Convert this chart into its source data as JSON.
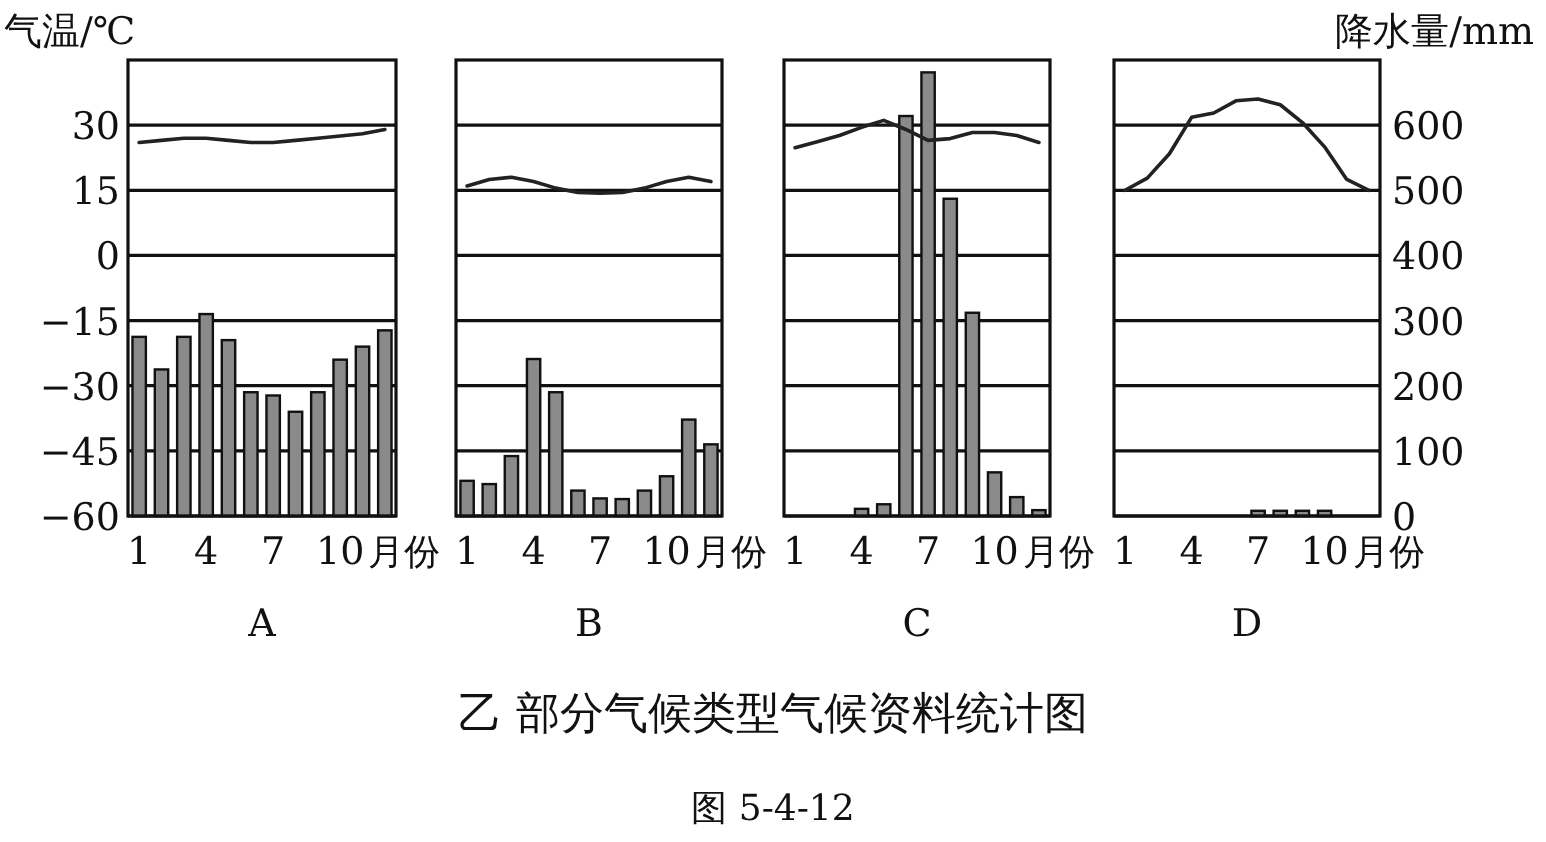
{
  "chart_data": [
    {
      "type": "bar",
      "title": "A",
      "ylabel": "气温/℃",
      "xlabel": "月份",
      "categories": [
        "1",
        null,
        null,
        "4",
        null,
        null,
        "7",
        null,
        null,
        "10",
        null,
        null
      ],
      "ylim": [
        -60,
        45
      ],
      "yticks": [
        -60,
        -45,
        -30,
        -15,
        0,
        15,
        30
      ],
      "y2lim": [
        0,
        700
      ],
      "grid": "y",
      "tick_labels": "xy",
      "series": [
        {
          "axis": "y2",
          "color": "#8a8a8a",
          "values": [
            275,
            225,
            275,
            310,
            270,
            190,
            185,
            160,
            190,
            240,
            260,
            285
          ]
        },
        {
          "type": "line",
          "color": "#222222",
          "values": [
            26,
            26.5,
            27,
            27,
            26.5,
            26,
            26,
            26.5,
            27,
            27.5,
            28,
            29
          ]
        }
      ],
      "annotations": [
        "乙 部分气候类型气候资料统计图",
        "图 5-4-12"
      ]
    },
    {
      "type": "bar",
      "title": "B",
      "xlabel": "月份",
      "categories": [
        "1",
        null,
        null,
        "4",
        null,
        null,
        "7",
        null,
        null,
        "10",
        null,
        null
      ],
      "ylim": [
        -60,
        45
      ],
      "yticks": [
        {
          "value": -60,
          "label": null
        },
        {
          "value": -45,
          "label": null
        },
        {
          "value": -30,
          "label": null
        },
        {
          "value": -15,
          "label": null
        },
        {
          "value": 0,
          "label": null
        },
        {
          "value": 15,
          "label": null
        },
        {
          "value": 30,
          "label": null
        }
      ],
      "y2lim": [
        0,
        700
      ],
      "grid": "y",
      "tick_labels": "x",
      "series": [
        {
          "axis": "y2",
          "color": "#8a8a8a",
          "values": [
            54,
            49,
            92,
            241,
            190,
            39,
            27,
            26,
            39,
            61,
            148,
            110
          ]
        },
        {
          "type": "line",
          "color": "#222222",
          "values": [
            16,
            17.5,
            18,
            17,
            15.5,
            14.5,
            14.3,
            14.5,
            15.5,
            17,
            18,
            17
          ]
        }
      ]
    },
    {
      "type": "bar",
      "title": "C",
      "xlabel": "月份",
      "categories": [
        "1",
        null,
        null,
        "4",
        null,
        null,
        "7",
        null,
        null,
        "10",
        null,
        null
      ],
      "ylim": [
        -60,
        45
      ],
      "yticks": [
        {
          "value": -60,
          "label": null
        },
        {
          "value": -45,
          "label": null
        },
        {
          "value": -30,
          "label": null
        },
        {
          "value": -15,
          "label": null
        },
        {
          "value": 0,
          "label": null
        },
        {
          "value": 15,
          "label": null
        },
        {
          "value": 30,
          "label": null
        }
      ],
      "y2lim": [
        0,
        700
      ],
      "grid": "y",
      "tick_labels": "x",
      "series": [
        {
          "axis": "y2",
          "color": "#8a8a8a",
          "values": [
            0,
            0,
            0,
            11,
            18,
            614,
            681,
            487,
            312,
            67,
            29,
            9
          ]
        },
        {
          "type": "line",
          "color": "#222222",
          "values": [
            24.8,
            26.2,
            27.6,
            29.5,
            31.1,
            29,
            26.5,
            26.9,
            28.3,
            28.3,
            27.6,
            26
          ]
        }
      ]
    },
    {
      "type": "bar",
      "title": "D",
      "xlabel": "月份",
      "y2label": "降水量/mm",
      "categories": [
        "1",
        null,
        null,
        "4",
        null,
        null,
        "7",
        null,
        null,
        "10",
        null,
        null
      ],
      "ylim": [
        -60,
        45
      ],
      "y2lim": [
        0,
        700
      ],
      "y2ticks": [
        0,
        100,
        200,
        300,
        400,
        500,
        600
      ],
      "grid": "y",
      "tick_labels": "xy2",
      "series": [
        {
          "axis": "y2",
          "color": "#8a8a8a",
          "values": [
            0,
            0,
            0,
            0,
            0,
            0,
            8,
            8,
            8,
            8,
            0,
            0
          ]
        },
        {
          "type": "line",
          "color": "#222222",
          "values": [
            15,
            17.8,
            23.4,
            31.8,
            32.8,
            35.6,
            36,
            34.7,
            30.6,
            25,
            17.5,
            15
          ]
        }
      ]
    }
  ]
}
